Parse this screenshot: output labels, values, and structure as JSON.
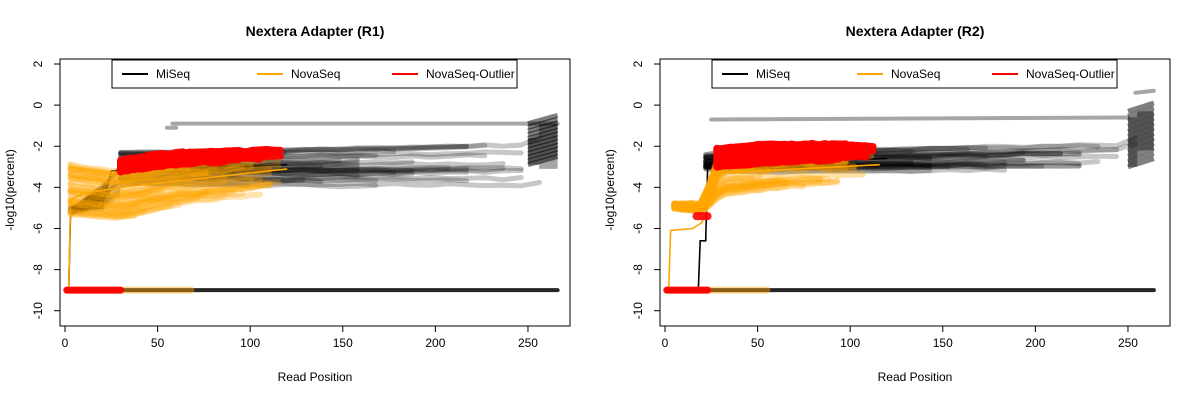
{
  "chart_data": [
    {
      "type": "line",
      "title": "Nextera Adapter (R1)",
      "xlabel": "Read Position",
      "ylabel": "-log10(percent)",
      "xlim": [
        0,
        270
      ],
      "ylim": [
        -10.5,
        2.0
      ],
      "x_ticks": [
        0,
        50,
        100,
        150,
        200,
        250
      ],
      "y_ticks": [
        2,
        0,
        -2,
        -4,
        -6,
        -8,
        -10
      ],
      "legend_position": "top",
      "series": [
        {
          "name": "MiSeq",
          "color": "#000000",
          "x_max": 266,
          "floor": -9,
          "bands": [
            {
              "x": [
                30,
                120,
                250,
                266
              ],
              "top": [
                -2.3,
                -2.2,
                -1.9,
                -1.0
              ],
              "bottom": [
                -3.8,
                -3.9,
                -4.0,
                -3.7
              ],
              "alpha": 0.22,
              "width": 5
            },
            {
              "x": [
                3,
                5,
                20,
                30
              ],
              "top": [
                -5.0,
                -5.0,
                -4.0,
                -3.0
              ],
              "bottom": [
                -5.2,
                -5.2,
                -5.0,
                -4.2
              ],
              "alpha": 0.3,
              "width": 4
            }
          ],
          "outliers": [
            {
              "x": [
                58,
                266
              ],
              "y": [
                -0.9,
                -0.9
              ]
            },
            {
              "x": [
                55,
                60
              ],
              "y": [
                -1.1,
                -1.1
              ]
            }
          ],
          "median": {
            "x": [
              1,
              2,
              3,
              20,
              25,
              120
            ],
            "y": [
              -9,
              -9,
              -5.1,
              -5.0,
              -3.2,
              -2.9
            ]
          },
          "steps": [
            {
              "x": [
                250,
                256,
                266
              ],
              "top": [
                -1.9,
                -1.6,
                -0.9
              ],
              "bottom": [
                -2.9,
                -3.1,
                -2.5
              ]
            }
          ]
        },
        {
          "name": "NovaSeq",
          "color": "#FFA500",
          "x_max": 120,
          "floor": -9,
          "floor_x_max": 68,
          "bands": [
            {
              "x": [
                3,
                30,
                60,
                120
              ],
              "top": [
                -2.9,
                -3.3,
                -3.0,
                -2.5
              ],
              "bottom": [
                -5.3,
                -5.5,
                -4.9,
                -4.3
              ],
              "alpha": 0.3,
              "width": 6
            }
          ],
          "median": {
            "x": [
              1,
              2,
              3,
              10,
              30,
              120
            ],
            "y": [
              -9,
              -9,
              -4.6,
              -4.3,
              -4.0,
              -3.1
            ]
          }
        },
        {
          "name": "NovaSeq-Outlier",
          "color": "#FF0000",
          "x_max": 120,
          "floor": -9,
          "floor_x_max": 30,
          "bands": [
            {
              "x": [
                30,
                50,
                80,
                120
              ],
              "top": [
                -2.7,
                -2.4,
                -2.2,
                -2.1
              ],
              "bottom": [
                -3.3,
                -3.0,
                -2.8,
                -2.7
              ],
              "alpha": 0.95,
              "width": 7
            }
          ]
        }
      ]
    },
    {
      "type": "line",
      "title": "Nextera Adapter (R2)",
      "xlabel": "Read Position",
      "ylabel": "-log10(percent)",
      "xlim": [
        0,
        270
      ],
      "ylim": [
        -10.5,
        2.0
      ],
      "x_ticks": [
        0,
        50,
        100,
        150,
        200,
        250
      ],
      "y_ticks": [
        2,
        0,
        -2,
        -4,
        -6,
        -8,
        -10
      ],
      "legend_position": "top",
      "series": [
        {
          "name": "MiSeq",
          "color": "#000000",
          "x_max": 264,
          "floor": -9,
          "bands": [
            {
              "x": [
                22,
                60,
                250,
                264
              ],
              "top": [
                -2.3,
                -2.0,
                -1.6,
                -0.4
              ],
              "bottom": [
                -3.2,
                -3.3,
                -3.2,
                -2.9
              ],
              "alpha": 0.22,
              "width": 5
            }
          ],
          "outliers": [
            {
              "x": [
                25,
                250
              ],
              "y": [
                -0.7,
                -0.6
              ]
            },
            {
              "x": [
                254,
                264
              ],
              "y": [
                0.6,
                0.7
              ]
            }
          ],
          "median": {
            "x": [
              1,
              18,
              19,
              22,
              23,
              27,
              30,
              120
            ],
            "y": [
              -9,
              -9,
              -6.6,
              -6.6,
              -3.1,
              -3.0,
              -2.8,
              -2.6
            ]
          },
          "steps": [
            {
              "x": [
                250,
                255,
                264
              ],
              "top": [
                -1.6,
                -0.6,
                -0.3
              ],
              "bottom": [
                -3.0,
                -2.2,
                -1.1
              ]
            }
          ]
        },
        {
          "name": "NovaSeq",
          "color": "#FFA500",
          "x_max": 116,
          "floor": -9,
          "floor_x_max": 55,
          "bands": [
            {
              "x": [
                5,
                20,
                30,
                60,
                116
              ],
              "top": [
                -4.8,
                -4.8,
                -2.2,
                -2.4,
                -2.4
              ],
              "bottom": [
                -5.0,
                -5.2,
                -4.4,
                -4.0,
                -3.8
              ],
              "alpha": 0.35,
              "width": 6
            }
          ],
          "median": {
            "x": [
              1,
              2,
              3,
              15,
              20,
              30,
              116
            ],
            "y": [
              -9,
              -9,
              -6.1,
              -6.0,
              -5.7,
              -3.3,
              -2.9
            ]
          }
        },
        {
          "name": "NovaSeq-Outlier",
          "color": "#FF0000",
          "x_max": 116,
          "floor": -9,
          "floor_x_max": 23,
          "bands": [
            {
              "x": [
                28,
                60,
                116
              ],
              "top": [
                -2.1,
                -1.9,
                -1.9
              ],
              "bottom": [
                -3.0,
                -2.8,
                -2.6
              ],
              "alpha": 0.95,
              "width": 7
            }
          ],
          "outliers": [
            {
              "x": [
                17,
                23
              ],
              "y": [
                -5.4,
                -5.4
              ]
            }
          ]
        }
      ]
    }
  ]
}
